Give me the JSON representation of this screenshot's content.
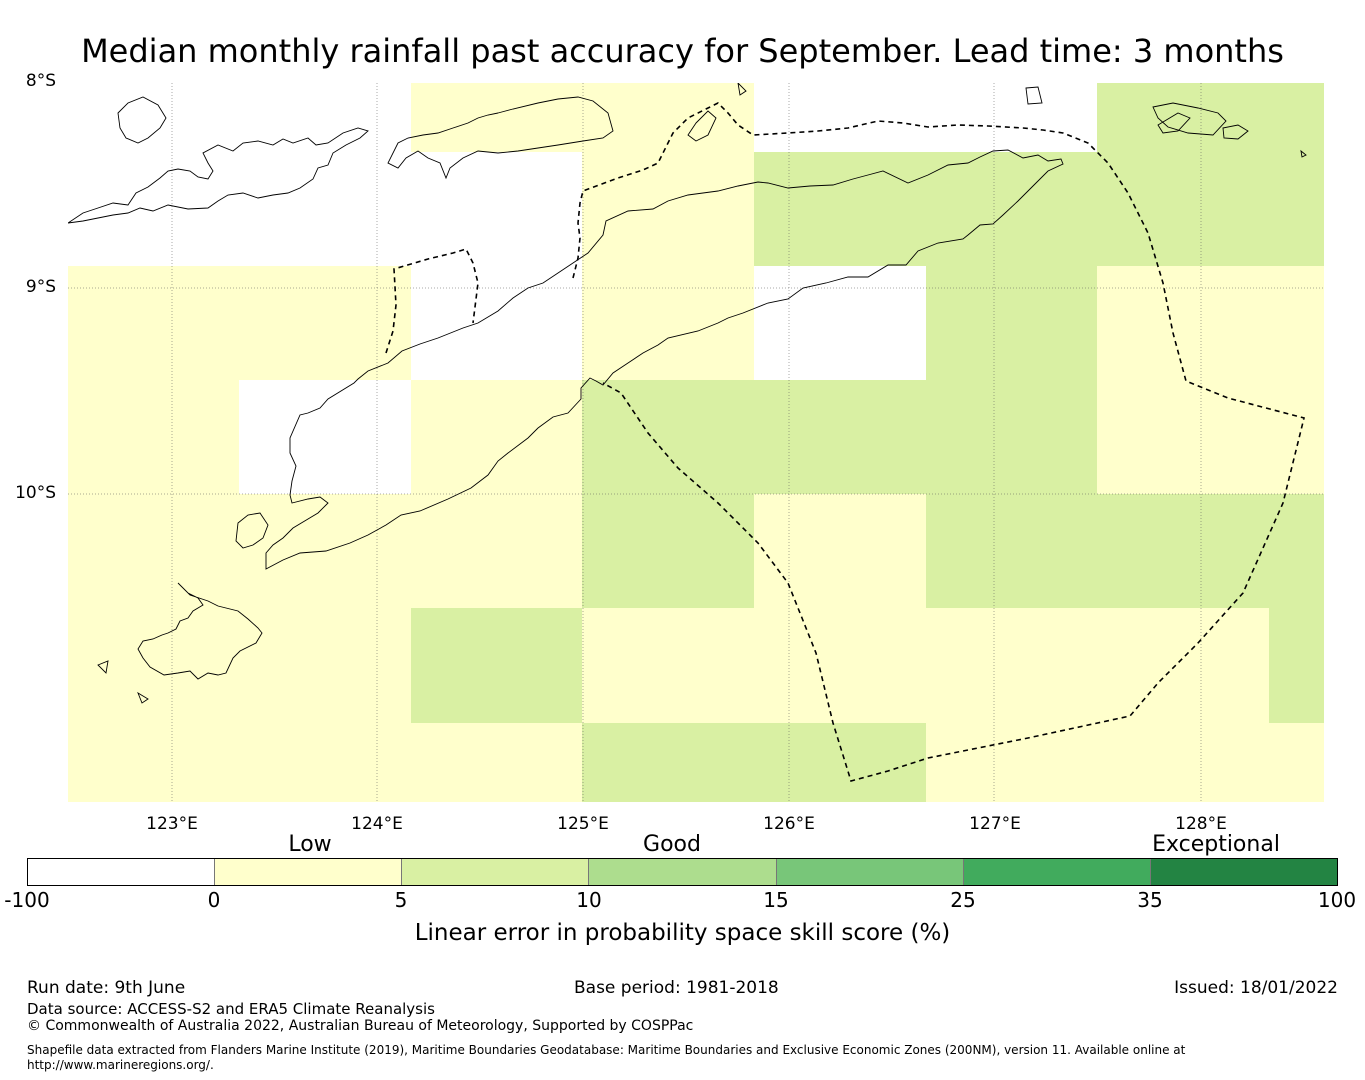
{
  "title": "Median monthly rainfall past accuracy for September. Lead time: 3 months",
  "map": {
    "lat_labels": [
      "8°S",
      "9°S",
      "10°S"
    ],
    "lon_labels": [
      "123°E",
      "124°E",
      "125°E",
      "126°E",
      "127°E",
      "128°E"
    ],
    "extent": {
      "lon_min": 122.5,
      "lon_max": 128.6,
      "lat_max": -8.0,
      "lat_min": -11.5
    },
    "grid_cell_size_deg": 0.833,
    "skill_grid_note": "rows north to south, cols west to east; values are colorbar class index: 0=-100..0, 1=0..5, 2=5..10",
    "skill_grid": [
      [
        null,
        null,
        1,
        1,
        0,
        0,
        2,
        2
      ],
      [
        null,
        null,
        0,
        1,
        2,
        2,
        2,
        2
      ],
      [
        1,
        1,
        0,
        1,
        0,
        2,
        1,
        1
      ],
      [
        1,
        0,
        1,
        2,
        2,
        2,
        1,
        1
      ],
      [
        1,
        1,
        1,
        2,
        1,
        2,
        2,
        2
      ],
      [
        1,
        1,
        2,
        1,
        1,
        1,
        1,
        2
      ],
      [
        1,
        1,
        1,
        2,
        2,
        1,
        1,
        1
      ]
    ]
  },
  "colorbar": {
    "tick_labels": [
      "-100",
      "0",
      "5",
      "10",
      "15",
      "25",
      "35",
      "100"
    ],
    "colors": [
      "#ffffff",
      "#ffffcc",
      "#d9f0a3",
      "#addd8e",
      "#78c679",
      "#41ab5d",
      "#238443"
    ],
    "categories": [
      {
        "label": "Low"
      },
      {
        "label": "Good"
      },
      {
        "label": "Exceptional"
      }
    ],
    "label": "Linear error in probability space skill score (%)"
  },
  "footer": {
    "run_date": "Run date: 9th June",
    "base_period": "Base period: 1981-2018",
    "issued": "Issued: 18/01/2022",
    "data_source": "Data source: ACCESS-S2 and ERA5 Climate Reanalysis",
    "copyright": "© Commonwealth of Australia 2022, Australian Bureau of Meteorology, Supported by COSPPac",
    "shapefile_note": "Shapefile data extracted from Flanders Marine Institute (2019), Maritime Boundaries Geodatabase: Maritime Boundaries and Exclusive Economic Zones (200NM), version 11. Available online at",
    "shapefile_url": "http://www.marineregions.org/."
  }
}
